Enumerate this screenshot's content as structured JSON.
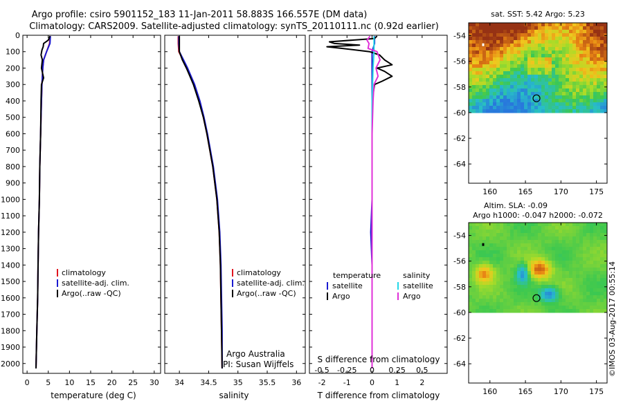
{
  "header": {
    "line1": "Argo profile: csiro 5901152_183 11-Jan-2011 58.883S 166.557E (DM data)",
    "line2": "Climatology: CARS2009. Satellite-adjusted climatology: synTS_20110111.nc (0.92d earlier)"
  },
  "colors": {
    "climatology": "#e0141e",
    "satellite": "#1a1ad0",
    "argo": "#000000",
    "salinity_satellite": "#22d8e8",
    "salinity_argo": "#e030d8"
  },
  "chart_data": [
    {
      "type": "line",
      "xlabel": "temperature (deg C)",
      "ylabel": "",
      "xlim": [
        -1,
        31.5
      ],
      "ylim": [
        2060,
        0
      ],
      "x_ticks": [
        "0",
        "5",
        "10",
        "15",
        "20",
        "25",
        "30"
      ],
      "x_tick_values": [
        0,
        5,
        10,
        15,
        20,
        25,
        30
      ],
      "y_ticks": [
        "0",
        "100",
        "200",
        "300",
        "400",
        "500",
        "600",
        "700",
        "800",
        "900",
        "1000",
        "1100",
        "1200",
        "1300",
        "1400",
        "1500",
        "1600",
        "1700",
        "1800",
        "1900",
        "2000"
      ],
      "y_tick_values": [
        0,
        100,
        200,
        300,
        400,
        500,
        600,
        700,
        800,
        900,
        1000,
        1100,
        1200,
        1300,
        1400,
        1500,
        1600,
        1700,
        1800,
        1900,
        2000
      ],
      "legend": [
        "climatology",
        "satellite-adj. clim.",
        "Argo(..raw -QC)"
      ],
      "series": [
        {
          "name": "climatology",
          "depth": [
            5,
            50,
            100,
            150,
            200,
            300,
            400,
            600,
            800,
            1000,
            1200,
            1400,
            1600,
            1800,
            2030
          ],
          "values": [
            5.4,
            5.3,
            4.6,
            3.9,
            3.7,
            3.5,
            3.4,
            3.2,
            3.0,
            2.9,
            2.7,
            2.6,
            2.5,
            2.3,
            2.1
          ]
        },
        {
          "name": "satellite-adj. clim.",
          "depth": [
            5,
            50,
            100,
            150,
            200,
            300,
            400,
            600,
            800,
            1000,
            1200,
            1400,
            1600,
            1800,
            2030
          ],
          "values": [
            5.5,
            5.4,
            4.6,
            3.9,
            3.7,
            3.5,
            3.4,
            3.2,
            3.0,
            2.9,
            2.7,
            2.6,
            2.5,
            2.3,
            2.1
          ]
        },
        {
          "name": "Argo(..raw -QC)",
          "depth": [
            5,
            30,
            50,
            70,
            90,
            120,
            150,
            200,
            260,
            300,
            400,
            600,
            800,
            1000,
            1200,
            1400,
            1600,
            1800,
            2030
          ],
          "values": [
            5.4,
            5.0,
            3.9,
            3.8,
            3.5,
            3.3,
            3.6,
            3.4,
            3.9,
            3.4,
            3.3,
            3.2,
            3.0,
            2.9,
            2.7,
            2.6,
            2.5,
            2.3,
            2.1
          ]
        }
      ]
    },
    {
      "type": "line",
      "xlabel": "salinity",
      "xlim": [
        33.75,
        36.15
      ],
      "ylim": [
        2060,
        0
      ],
      "x_ticks": [
        "34",
        "34.5",
        "35",
        "35.5",
        "36"
      ],
      "x_tick_values": [
        34,
        34.5,
        35,
        35.5,
        36
      ],
      "legend": [
        "climatology",
        "satellite-adj. clim.",
        "Argo(..raw -QC)"
      ],
      "annotation": [
        "Argo Australia",
        "PI: Susan Wijffels"
      ],
      "series": [
        {
          "name": "climatology",
          "depth": [
            5,
            50,
            100,
            150,
            200,
            300,
            400,
            500,
            600,
            800,
            1000,
            1200,
            1400,
            1600,
            1800,
            2030
          ],
          "values": [
            33.98,
            33.98,
            33.99,
            34.06,
            34.13,
            34.25,
            34.34,
            34.41,
            34.47,
            34.57,
            34.64,
            34.68,
            34.7,
            34.71,
            34.72,
            34.73
          ]
        },
        {
          "name": "satellite-adj. clim.",
          "depth": [
            5,
            50,
            100,
            150,
            200,
            300,
            400,
            500,
            600,
            800,
            1000,
            1200,
            1400,
            1600,
            1800,
            2030
          ],
          "values": [
            33.99,
            33.99,
            34.0,
            34.07,
            34.14,
            34.26,
            34.35,
            34.42,
            34.48,
            34.58,
            34.65,
            34.69,
            34.71,
            34.72,
            34.73,
            34.73
          ]
        },
        {
          "name": "Argo(..raw -QC)",
          "depth": [
            5,
            50,
            100,
            150,
            200,
            250,
            300,
            400,
            500,
            600,
            800,
            1000,
            1200,
            1400,
            1600,
            1800,
            2030
          ],
          "values": [
            34.0,
            34.0,
            34.0,
            34.05,
            34.12,
            34.18,
            34.24,
            34.33,
            34.41,
            34.47,
            34.57,
            34.64,
            34.68,
            34.7,
            34.71,
            34.72,
            34.73
          ]
        }
      ]
    },
    {
      "type": "line",
      "xlabel": "T difference from climatology",
      "xlabel_top": "S difference from climatology",
      "xlim": [
        -2.5,
        3.0
      ],
      "ylim": [
        2060,
        0
      ],
      "x_ticks": [
        "-2",
        "-1",
        "0",
        "1",
        "2"
      ],
      "x_tick_values": [
        -2,
        -1,
        0,
        1,
        2
      ],
      "x_ticks_top": [
        "-0.5",
        "-0.25",
        "0",
        "0.25",
        "0.5"
      ],
      "x_tick_values_top": [
        -0.5,
        -0.25,
        0,
        0.25,
        0.5
      ],
      "legend_left_title": "temperature",
      "legend_left": [
        "satellite",
        "Argo"
      ],
      "legend_right_title": "salinity",
      "legend_right": [
        "satellite",
        "Argo"
      ],
      "series": [
        {
          "name": "temperature satellite",
          "depth": [
            5,
            50,
            100,
            200,
            400,
            600,
            800,
            1000,
            1200,
            1400,
            1600,
            1800,
            2030
          ],
          "values": [
            0.1,
            0.1,
            0.0,
            0.0,
            0.0,
            0.0,
            0.0,
            0.0,
            -0.05,
            0.0,
            0.0,
            0.0,
            0.0
          ]
        },
        {
          "name": "temperature Argo",
          "depth": [
            5,
            20,
            40,
            50,
            60,
            70,
            80,
            100,
            120,
            150,
            180,
            200,
            220,
            250,
            280,
            300,
            400,
            600,
            1000,
            2030
          ],
          "values": [
            0.2,
            0.1,
            -1.7,
            -1.5,
            -0.5,
            -1.8,
            -1.2,
            -0.1,
            0.3,
            0.5,
            0.8,
            0.2,
            0.5,
            0.8,
            0.4,
            0.1,
            0.0,
            0.0,
            0.0,
            0.0
          ]
        },
        {
          "name": "salinity satellite",
          "depth": [
            5,
            50,
            100,
            200,
            400,
            600,
            800,
            1000,
            1200,
            1400,
            1600,
            1800,
            2030
          ],
          "values": [
            0.02,
            0.02,
            0.02,
            0.01,
            0.0,
            0.0,
            0.0,
            0.0,
            0.0,
            0.0,
            0.0,
            0.0,
            0.0
          ]
        },
        {
          "name": "salinity Argo",
          "depth": [
            5,
            30,
            50,
            80,
            100,
            150,
            200,
            250,
            300,
            400,
            600,
            1000,
            2030
          ],
          "values": [
            -0.02,
            -0.05,
            -0.03,
            -0.04,
            0.05,
            0.08,
            0.04,
            0.06,
            0.02,
            0.01,
            0.0,
            0.0,
            0.0
          ]
        }
      ]
    },
    {
      "type": "heatmap",
      "title": "sat. SST: 5.42 Argo: 5.23",
      "xlim": [
        157,
        176.5
      ],
      "ylim": [
        -65.5,
        -53
      ],
      "x_ticks": [
        "160",
        "165",
        "170",
        "175"
      ],
      "x_tick_values": [
        160,
        165,
        170,
        175
      ],
      "y_ticks": [
        "-54",
        "-56",
        "-58",
        "-60",
        "-62",
        "-64"
      ],
      "y_tick_values": [
        -54,
        -56,
        -58,
        -60,
        -62,
        -64
      ],
      "data_ylim": [
        -60,
        -53
      ],
      "marker": {
        "lon": 166.557,
        "lat": -58.883
      }
    },
    {
      "type": "heatmap",
      "title_line1": "Altim. SLA: -0.09",
      "title_line2": "Argo h1000: -0.047 h2000: -0.072",
      "xlim": [
        157,
        176.5
      ],
      "ylim": [
        -65.5,
        -53
      ],
      "x_ticks": [
        "160",
        "165",
        "170",
        "175"
      ],
      "x_tick_values": [
        160,
        165,
        170,
        175
      ],
      "y_ticks": [
        "-54",
        "-56",
        "-58",
        "-60",
        "-62",
        "-64"
      ],
      "y_tick_values": [
        -54,
        -56,
        -58,
        -60,
        -62,
        -64
      ],
      "data_ylim": [
        -60,
        -53
      ],
      "marker": {
        "lon": 166.557,
        "lat": -58.883
      }
    }
  ],
  "footer": {
    "stamp": "©IMOS 03-Aug-2017 00:55:14"
  }
}
